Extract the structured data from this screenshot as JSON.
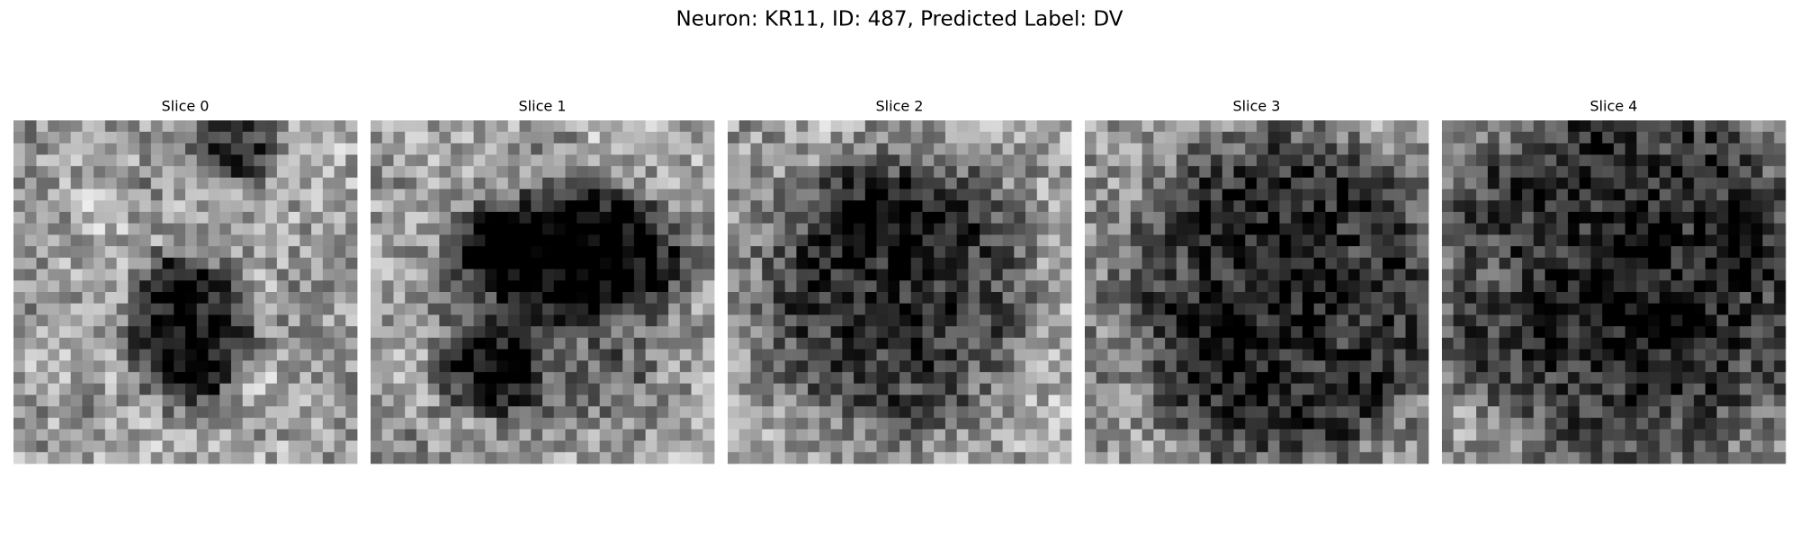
{
  "title": "Neuron: KR11, ID: 487, Predicted Label: DV",
  "panels": [
    {
      "title": "Slice 0"
    },
    {
      "title": "Slice 1"
    },
    {
      "title": "Slice 2"
    },
    {
      "title": "Slice 3"
    },
    {
      "title": "Slice 4"
    }
  ]
}
